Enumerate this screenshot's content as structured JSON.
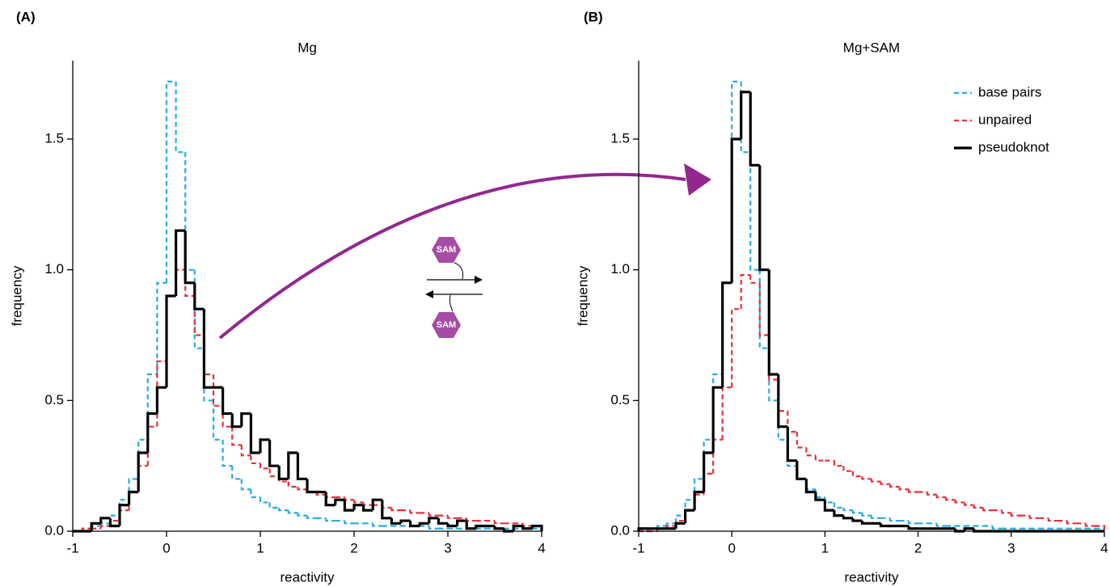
{
  "chart_data": [
    {
      "type": "histogram",
      "panel": "(A)",
      "title": "Mg",
      "xlabel": "reactivity",
      "ylabel": "frequency",
      "bins": [
        -1,
        -0.9,
        -0.8,
        -0.7,
        -0.6,
        -0.5,
        -0.4,
        -0.3,
        -0.2,
        -0.1,
        0,
        0.1,
        0.2,
        0.3,
        0.4,
        0.5,
        0.6,
        0.7,
        0.8,
        0.9,
        1,
        1.1,
        1.2,
        1.3,
        1.4,
        1.5,
        1.6,
        1.7,
        1.8,
        1.9,
        2,
        2.1,
        2.2,
        2.3,
        2.4,
        2.5,
        2.6,
        2.7,
        2.8,
        2.9,
        3,
        3.1,
        3.2,
        3.3,
        3.4,
        3.5,
        3.6,
        3.7,
        3.8,
        3.9,
        4
      ],
      "xlim": [
        -1,
        4
      ],
      "xticks": [
        -1,
        0,
        1,
        2,
        3,
        4
      ],
      "ylim": [
        0,
        1.8
      ],
      "yticks": [
        {
          "value": 0,
          "label": "0.0"
        },
        0.5,
        {
          "value": 1,
          "label": "1.0"
        },
        1.5
      ],
      "series": [
        {
          "color": "#29abe2",
          "dash": true,
          "values": [
            0,
            0.01,
            0.02,
            0.03,
            0.06,
            0.12,
            0.2,
            0.35,
            0.6,
            0.95,
            1.72,
            1.45,
            1.0,
            0.7,
            0.5,
            0.35,
            0.25,
            0.2,
            0.16,
            0.13,
            0.11,
            0.09,
            0.08,
            0.07,
            0.06,
            0.05,
            0.05,
            0.04,
            0.04,
            0.03,
            0.03,
            0.03,
            0.02,
            0.02,
            0.02,
            0.02,
            0.02,
            0.02,
            0.01,
            0.01,
            0.01,
            0.01,
            0.01,
            0.01,
            0.01,
            0.01,
            0.01,
            0.01,
            0.01,
            0.01
          ]
        },
        {
          "color": "#e8303a",
          "dash": true,
          "values": [
            0,
            0.01,
            0.01,
            0.02,
            0.04,
            0.08,
            0.15,
            0.25,
            0.4,
            0.65,
            0.9,
            1.0,
            0.9,
            0.75,
            0.6,
            0.48,
            0.4,
            0.33,
            0.29,
            0.26,
            0.24,
            0.21,
            0.19,
            0.17,
            0.16,
            0.15,
            0.14,
            0.13,
            0.13,
            0.12,
            0.11,
            0.1,
            0.1,
            0.09,
            0.08,
            0.08,
            0.07,
            0.07,
            0.06,
            0.06,
            0.05,
            0.05,
            0.04,
            0.04,
            0.04,
            0.03,
            0.03,
            0.03,
            0.02,
            0.02
          ]
        },
        {
          "color": "#000000",
          "dash": false,
          "values": [
            0,
            0,
            0.03,
            0.05,
            0.02,
            0.1,
            0.15,
            0.3,
            0.45,
            0.55,
            0.9,
            1.15,
            0.95,
            0.85,
            0.55,
            0.55,
            0.45,
            0.4,
            0.45,
            0.3,
            0.35,
            0.25,
            0.2,
            0.3,
            0.2,
            0.15,
            0.15,
            0.1,
            0.12,
            0.08,
            0.1,
            0.08,
            0.12,
            0.05,
            0.03,
            0.04,
            0.02,
            0.03,
            0.05,
            0.03,
            0.02,
            0.04,
            0.01,
            0.02,
            0.02,
            0.01,
            0,
            0.02,
            0.01,
            0.02
          ]
        }
      ]
    },
    {
      "type": "histogram",
      "panel": "(B)",
      "title": "Mg+SAM",
      "xlabel": "reactivity",
      "ylabel": "frequency",
      "legend": "upper right",
      "bins": [
        -1,
        -0.9,
        -0.8,
        -0.7,
        -0.6,
        -0.5,
        -0.4,
        -0.3,
        -0.2,
        -0.1,
        0,
        0.1,
        0.2,
        0.3,
        0.4,
        0.5,
        0.6,
        0.7,
        0.8,
        0.9,
        1,
        1.1,
        1.2,
        1.3,
        1.4,
        1.5,
        1.6,
        1.7,
        1.8,
        1.9,
        2,
        2.1,
        2.2,
        2.3,
        2.4,
        2.5,
        2.6,
        2.7,
        2.8,
        2.9,
        3,
        3.1,
        3.2,
        3.3,
        3.4,
        3.5,
        3.6,
        3.7,
        3.8,
        3.9,
        4
      ],
      "xlim": [
        -1,
        4
      ],
      "xticks": [
        -1,
        0,
        1,
        2,
        3,
        4
      ],
      "ylim": [
        0,
        1.8
      ],
      "yticks": [
        {
          "value": 0,
          "label": "0.0"
        },
        0.5,
        {
          "value": 1,
          "label": "1.0"
        },
        1.5
      ],
      "series": [
        {
          "name": "base pairs",
          "color": "#29abe2",
          "dash": true,
          "values": [
            0,
            0.01,
            0.02,
            0.03,
            0.06,
            0.12,
            0.2,
            0.35,
            0.6,
            0.95,
            1.72,
            1.45,
            1.0,
            0.7,
            0.5,
            0.35,
            0.25,
            0.2,
            0.16,
            0.13,
            0.11,
            0.09,
            0.08,
            0.07,
            0.06,
            0.05,
            0.05,
            0.04,
            0.04,
            0.03,
            0.03,
            0.03,
            0.02,
            0.02,
            0.02,
            0.02,
            0.02,
            0.02,
            0.01,
            0.01,
            0.01,
            0.01,
            0.01,
            0.01,
            0.01,
            0.01,
            0.01,
            0.01,
            0.01,
            0.01
          ]
        },
        {
          "name": "unpaired",
          "color": "#e8303a",
          "dash": true,
          "values": [
            0,
            0,
            0.01,
            0.02,
            0.04,
            0.08,
            0.14,
            0.22,
            0.35,
            0.55,
            0.85,
            0.98,
            0.95,
            0.75,
            0.58,
            0.46,
            0.38,
            0.32,
            0.29,
            0.27,
            0.27,
            0.25,
            0.23,
            0.21,
            0.2,
            0.19,
            0.18,
            0.17,
            0.16,
            0.15,
            0.15,
            0.14,
            0.13,
            0.12,
            0.11,
            0.1,
            0.09,
            0.08,
            0.08,
            0.07,
            0.06,
            0.06,
            0.05,
            0.05,
            0.04,
            0.04,
            0.03,
            0.03,
            0.02,
            0.02
          ]
        },
        {
          "name": "pseudoknot",
          "color": "#000000",
          "dash": false,
          "values": [
            0.01,
            0.01,
            0.01,
            0.01,
            0.03,
            0.08,
            0.15,
            0.3,
            0.55,
            0.95,
            1.5,
            1.68,
            1.4,
            1.0,
            0.6,
            0.4,
            0.27,
            0.2,
            0.15,
            0.12,
            0.08,
            0.06,
            0.05,
            0.04,
            0.03,
            0.03,
            0.02,
            0.02,
            0.02,
            0.01,
            0.01,
            0.01,
            0.01,
            0.01,
            0,
            0.01,
            0,
            0,
            0,
            0,
            0,
            0,
            0,
            0,
            0,
            0,
            0,
            0,
            0,
            0
          ]
        }
      ]
    }
  ],
  "diagram": {
    "ligand_labels": [
      "SAM",
      "SAM"
    ]
  }
}
